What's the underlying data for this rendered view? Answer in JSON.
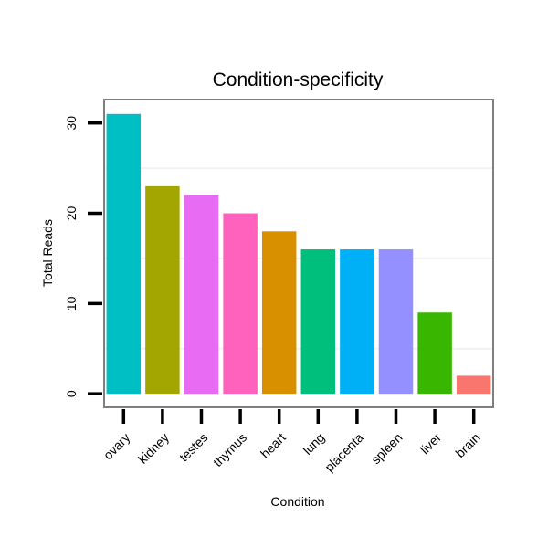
{
  "chart_data": {
    "type": "bar",
    "title": "Condition-specificity",
    "xlabel": "Condition",
    "ylabel": "Total Reads",
    "categories": [
      "ovary",
      "kidney",
      "testes",
      "thymus",
      "heart",
      "lung",
      "placenta",
      "spleen",
      "liver",
      "brain"
    ],
    "values": [
      31,
      23,
      22,
      20,
      18,
      16,
      16,
      16,
      9,
      2
    ],
    "colors": [
      "#00BFC4",
      "#A3A500",
      "#E76BF3",
      "#FF62BC",
      "#D89000",
      "#00BF7D",
      "#00B0F6",
      "#9590FF",
      "#39B600",
      "#F8766D"
    ],
    "yticks": [
      0,
      10,
      20,
      30
    ],
    "ylim": [
      -1.5,
      32.6
    ],
    "grid": "minor-only",
    "legend": "none"
  }
}
